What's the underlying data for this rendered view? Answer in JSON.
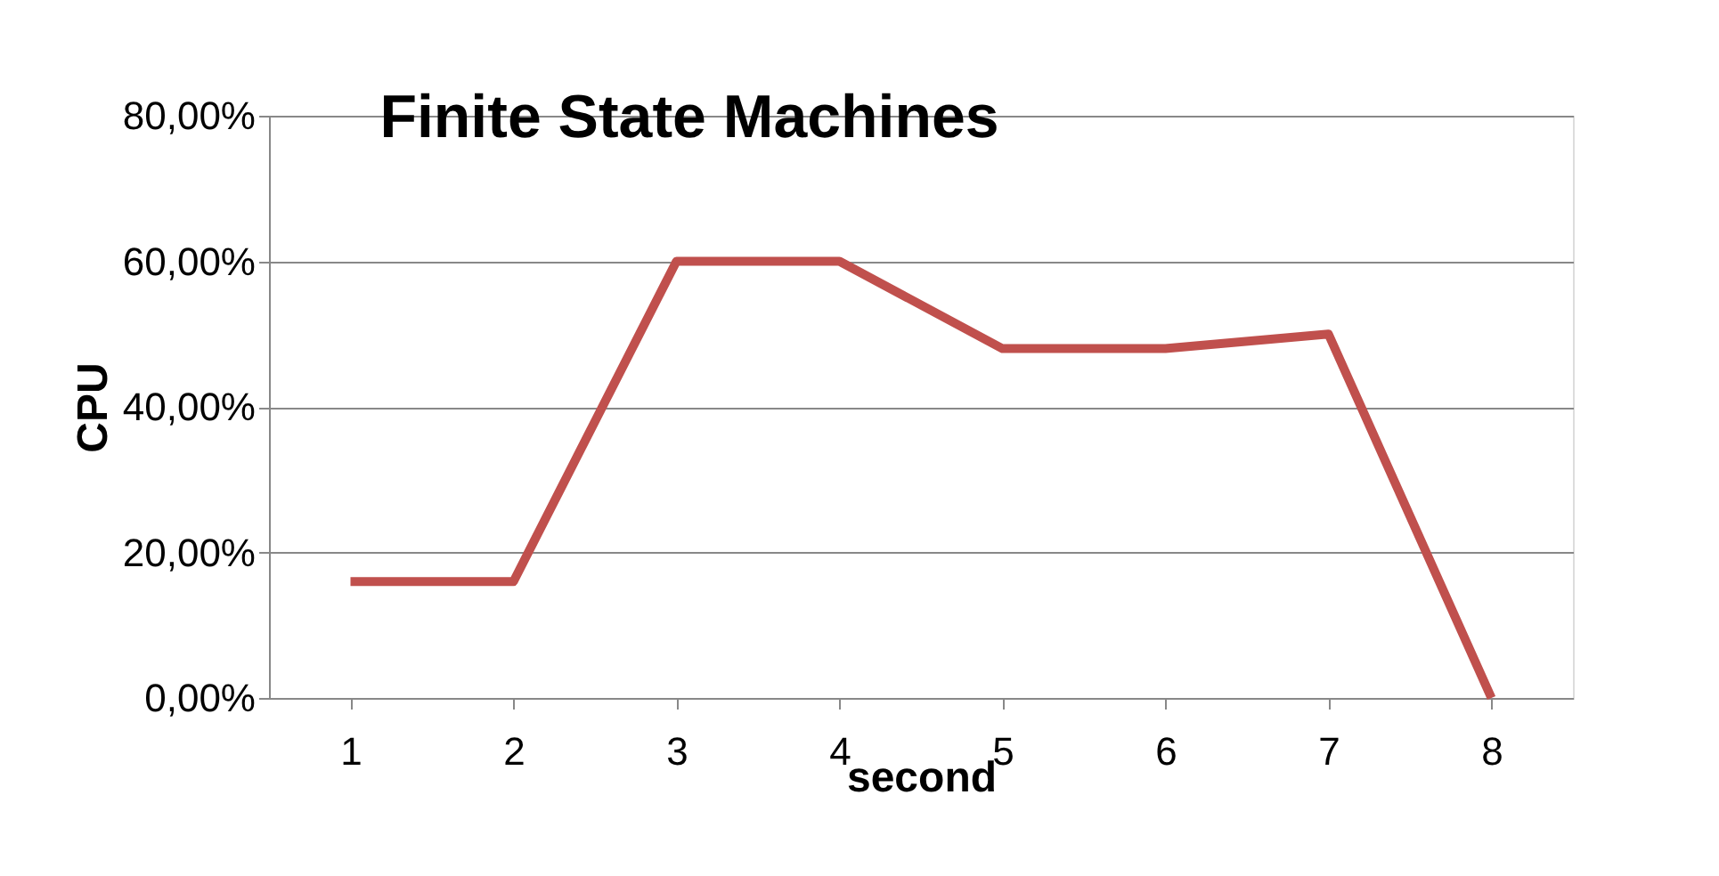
{
  "chart_data": {
    "type": "line",
    "title": "Finite State Machines",
    "xlabel": "second",
    "ylabel": "CPU",
    "categories": [
      "1",
      "2",
      "3",
      "4",
      "5",
      "6",
      "7",
      "8"
    ],
    "series": [
      {
        "color": "#c0504d",
        "values": [
          16,
          16,
          60,
          60,
          48,
          48,
          50,
          0
        ]
      }
    ],
    "ylim": [
      0,
      80
    ],
    "yticks": [
      {
        "value": 0,
        "label": "0,00%"
      },
      {
        "value": 20,
        "label": "20,00%"
      },
      {
        "value": 40,
        "label": "40,00%"
      },
      {
        "value": 60,
        "label": "60,00%"
      },
      {
        "value": 80,
        "label": "80,00%"
      }
    ],
    "grid": "y",
    "marker": "none",
    "line_style": "solid"
  }
}
